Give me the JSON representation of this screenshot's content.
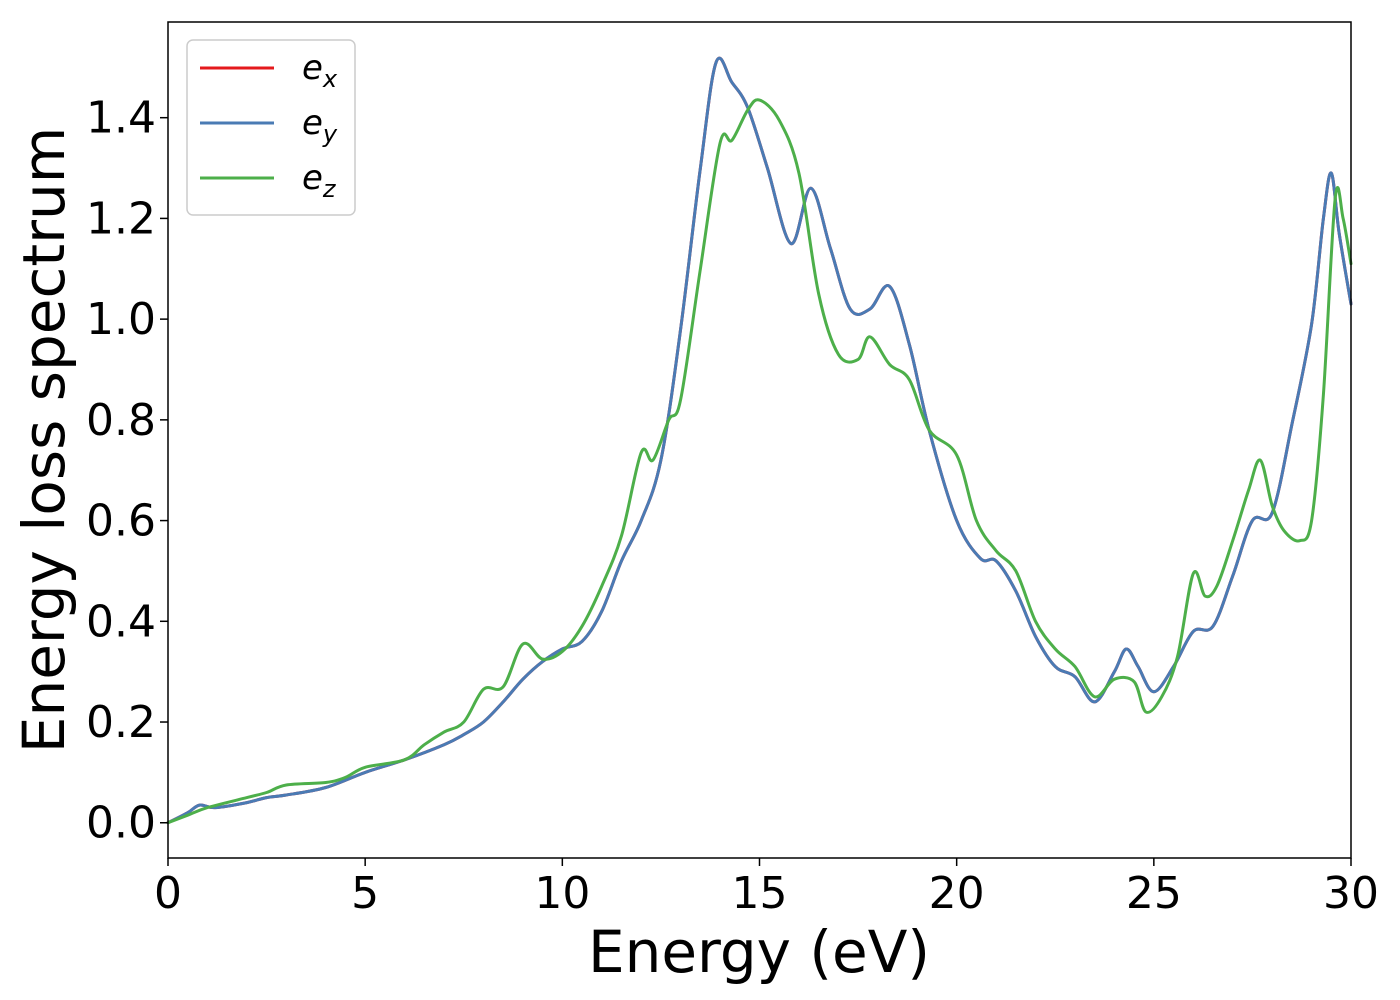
{
  "chart_data": {
    "type": "line",
    "title": "",
    "xlabel": "Energy (eV)",
    "ylabel": "Energy loss spectrum",
    "xlim": [
      0,
      30
    ],
    "ylim": [
      -0.07,
      1.59
    ],
    "xticks": [
      0,
      5,
      10,
      15,
      20,
      25,
      30
    ],
    "xtick_labels": [
      "0",
      "5",
      "10",
      "15",
      "20",
      "25",
      "30"
    ],
    "yticks": [
      0.0,
      0.2,
      0.4,
      0.6,
      0.8,
      1.0,
      1.2,
      1.4
    ],
    "ytick_labels": [
      "0.0",
      "0.2",
      "0.4",
      "0.6",
      "0.8",
      "1.0",
      "1.2",
      "1.4"
    ],
    "grid": false,
    "legend_position": "top-left",
    "series": [
      {
        "name": "e_x",
        "legend_base": "e",
        "legend_sub": "x",
        "color": "#e41a1c",
        "x": [
          0,
          0.5,
          0.8,
          1.2,
          2,
          2.5,
          3,
          4,
          5,
          6,
          7,
          7.5,
          8,
          8.5,
          9,
          9.5,
          10,
          10.5,
          11,
          11.5,
          12,
          12.5,
          13,
          13.5,
          13.9,
          14.3,
          14.7,
          15.2,
          15.8,
          16.3,
          16.8,
          17.3,
          17.8,
          18.3,
          18.8,
          19.3,
          20,
          20.6,
          21,
          21.5,
          22,
          22.5,
          23,
          23.5,
          24,
          24.3,
          24.6,
          25,
          25.5,
          26,
          26.5,
          27,
          27.5,
          28,
          28.5,
          29,
          29.3,
          29.5,
          29.7,
          30
        ],
        "y": [
          0.0,
          0.02,
          0.035,
          0.03,
          0.04,
          0.05,
          0.055,
          0.07,
          0.1,
          0.125,
          0.155,
          0.175,
          0.2,
          0.24,
          0.285,
          0.32,
          0.345,
          0.36,
          0.42,
          0.52,
          0.6,
          0.72,
          0.98,
          1.3,
          1.51,
          1.47,
          1.42,
          1.3,
          1.15,
          1.26,
          1.14,
          1.02,
          1.02,
          1.065,
          0.95,
          0.78,
          0.6,
          0.525,
          0.52,
          0.46,
          0.37,
          0.31,
          0.29,
          0.24,
          0.3,
          0.345,
          0.31,
          0.26,
          0.31,
          0.38,
          0.39,
          0.49,
          0.6,
          0.615,
          0.79,
          0.99,
          1.2,
          1.29,
          1.17,
          1.03
        ]
      },
      {
        "name": "e_y",
        "legend_base": "e",
        "legend_sub": "y",
        "color": "#4a7bb4",
        "x": [
          0,
          0.5,
          0.8,
          1.2,
          2,
          2.5,
          3,
          4,
          5,
          6,
          7,
          7.5,
          8,
          8.5,
          9,
          9.5,
          10,
          10.5,
          11,
          11.5,
          12,
          12.5,
          13,
          13.5,
          13.9,
          14.3,
          14.7,
          15.2,
          15.8,
          16.3,
          16.8,
          17.3,
          17.8,
          18.3,
          18.8,
          19.3,
          20,
          20.6,
          21,
          21.5,
          22,
          22.5,
          23,
          23.5,
          24,
          24.3,
          24.6,
          25,
          25.5,
          26,
          26.5,
          27,
          27.5,
          28,
          28.5,
          29,
          29.3,
          29.5,
          29.7,
          30
        ],
        "y": [
          0.0,
          0.02,
          0.035,
          0.03,
          0.04,
          0.05,
          0.055,
          0.07,
          0.1,
          0.125,
          0.155,
          0.175,
          0.2,
          0.24,
          0.285,
          0.32,
          0.345,
          0.36,
          0.42,
          0.52,
          0.6,
          0.72,
          0.98,
          1.3,
          1.51,
          1.47,
          1.42,
          1.3,
          1.15,
          1.26,
          1.14,
          1.02,
          1.02,
          1.065,
          0.95,
          0.78,
          0.6,
          0.525,
          0.52,
          0.46,
          0.37,
          0.31,
          0.29,
          0.24,
          0.3,
          0.345,
          0.31,
          0.26,
          0.31,
          0.38,
          0.39,
          0.49,
          0.6,
          0.615,
          0.79,
          0.99,
          1.2,
          1.29,
          1.17,
          1.03
        ]
      },
      {
        "name": "e_z",
        "legend_base": "e",
        "legend_sub": "z",
        "color": "#4daf4a",
        "x": [
          0,
          0.5,
          1,
          2,
          2.5,
          3,
          4,
          4.5,
          5,
          6,
          6.5,
          7,
          7.5,
          8,
          8.5,
          9,
          9.5,
          10,
          10.5,
          11,
          11.5,
          12,
          12.3,
          12.7,
          13,
          13.5,
          14,
          14.3,
          14.7,
          15,
          15.5,
          16,
          16.5,
          17,
          17.5,
          17.8,
          18.3,
          18.8,
          19.3,
          20,
          20.5,
          21,
          21.5,
          22,
          22.5,
          23,
          23.5,
          24,
          24.5,
          24.8,
          25.2,
          25.6,
          26,
          26.3,
          26.6,
          27,
          27.4,
          27.7,
          28,
          28.3,
          28.7,
          29,
          29.3,
          29.6,
          29.8,
          30
        ],
        "y": [
          0.0,
          0.015,
          0.03,
          0.05,
          0.06,
          0.075,
          0.08,
          0.09,
          0.11,
          0.125,
          0.155,
          0.18,
          0.2,
          0.265,
          0.27,
          0.355,
          0.325,
          0.34,
          0.39,
          0.47,
          0.57,
          0.735,
          0.72,
          0.8,
          0.84,
          1.1,
          1.35,
          1.355,
          1.415,
          1.435,
          1.395,
          1.29,
          1.05,
          0.93,
          0.92,
          0.965,
          0.91,
          0.88,
          0.78,
          0.73,
          0.6,
          0.54,
          0.5,
          0.4,
          0.345,
          0.31,
          0.25,
          0.285,
          0.28,
          0.22,
          0.25,
          0.33,
          0.495,
          0.45,
          0.47,
          0.56,
          0.66,
          0.72,
          0.63,
          0.58,
          0.56,
          0.6,
          0.85,
          1.24,
          1.2,
          1.11
        ]
      }
    ]
  }
}
